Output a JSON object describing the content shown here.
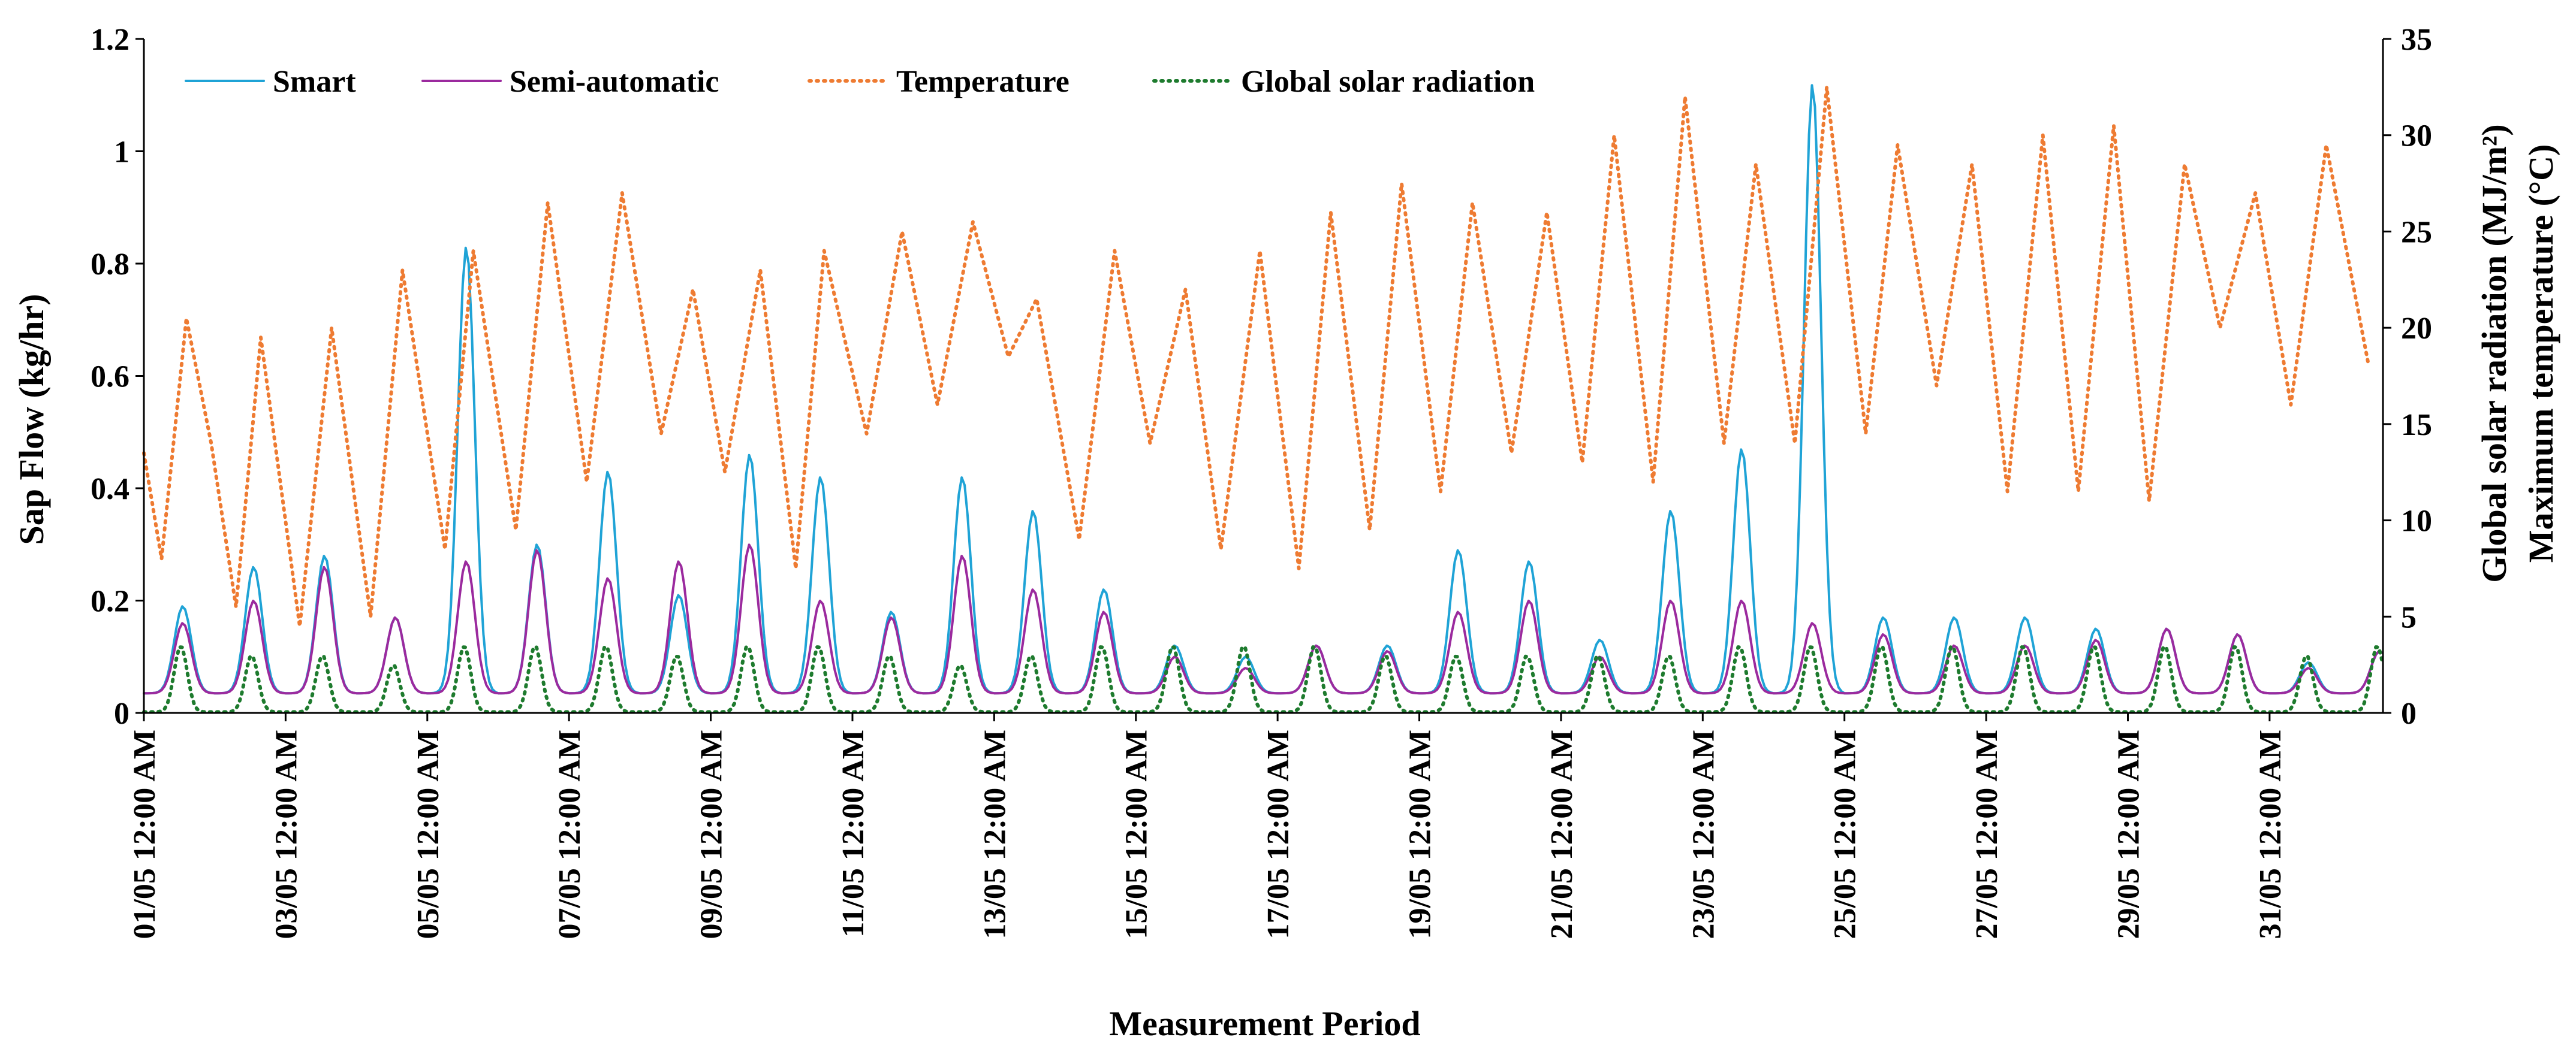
{
  "chart_data": {
    "type": "line",
    "xlabel": "Measurement Period",
    "ylabel_left": "Sap Flow (kg/hr)",
    "ylabel_right_1": "Global solar radiation (MJ/m²)",
    "ylabel_right_2": "Maximum temperature (°C)",
    "ylim_left": [
      0,
      1.2
    ],
    "ylim_right": [
      0,
      35
    ],
    "xlim_days": [
      0,
      31.6
    ],
    "left_ticks": [
      "0",
      "0.2",
      "0.4",
      "0.6",
      "0.8",
      "1",
      "1.2"
    ],
    "right_ticks": [
      "0",
      "5",
      "10",
      "15",
      "20",
      "25",
      "30",
      "35"
    ],
    "x_tick_labels": [
      "01/05 12:00 AM",
      "03/05 12:00 AM",
      "05/05 12:00 AM",
      "07/05 12:00 AM",
      "09/05 12:00 AM",
      "11/05 12:00 AM",
      "13/05 12:00 AM",
      "15/05 12:00 AM",
      "17/05 12:00 AM",
      "19/05 12:00 AM",
      "21/05 12:00 AM",
      "23/05 12:00 AM",
      "25/05 12:00 AM",
      "27/05 12:00 AM",
      "29/05 12:00 AM",
      "31/05 12:00 AM"
    ],
    "legend_position": "top-left",
    "series": [
      {
        "name": "Smart",
        "color": "#1fa3d6",
        "style": "solid",
        "axis": "left",
        "daily_peak": [
          0.19,
          0.26,
          0.28,
          0.17,
          0.83,
          0.3,
          0.43,
          0.21,
          0.46,
          0.42,
          0.18,
          0.42,
          0.36,
          0.22,
          0.12,
          0.1,
          0.12,
          0.12,
          0.29,
          0.27,
          0.13,
          0.36,
          0.47,
          1.12,
          0.17,
          0.17,
          0.17,
          0.15,
          0.15,
          0.14,
          0.09,
          0.11
        ]
      },
      {
        "name": "Semi-automatic",
        "color": "#9b2a9e",
        "style": "solid",
        "axis": "left",
        "daily_peak": [
          0.16,
          0.2,
          0.26,
          0.17,
          0.27,
          0.29,
          0.24,
          0.27,
          0.3,
          0.2,
          0.17,
          0.28,
          0.22,
          0.18,
          0.1,
          0.08,
          0.12,
          0.11,
          0.18,
          0.2,
          0.1,
          0.2,
          0.2,
          0.16,
          0.14,
          0.12,
          0.12,
          0.13,
          0.15,
          0.14,
          0.08,
          0.11
        ]
      },
      {
        "name": "Temperature",
        "color": "#ee7b32",
        "style": "dotted",
        "axis": "right",
        "points": [
          [
            0.0,
            13.5
          ],
          [
            0.25,
            8.0
          ],
          [
            0.6,
            20.5
          ],
          [
            0.95,
            14.0
          ],
          [
            1.3,
            5.5
          ],
          [
            1.65,
            19.5
          ],
          [
            2.2,
            4.5
          ],
          [
            2.65,
            20.0
          ],
          [
            3.2,
            5.0
          ],
          [
            3.65,
            23.0
          ],
          [
            4.25,
            8.5
          ],
          [
            4.65,
            24.0
          ],
          [
            5.25,
            9.5
          ],
          [
            5.7,
            26.5
          ],
          [
            6.25,
            12.0
          ],
          [
            6.75,
            27.0
          ],
          [
            7.3,
            14.5
          ],
          [
            7.75,
            22.0
          ],
          [
            8.2,
            12.5
          ],
          [
            8.7,
            23.0
          ],
          [
            9.2,
            7.5
          ],
          [
            9.6,
            24.0
          ],
          [
            10.2,
            14.5
          ],
          [
            10.7,
            25.0
          ],
          [
            11.2,
            16.0
          ],
          [
            11.7,
            25.5
          ],
          [
            12.2,
            18.5
          ],
          [
            12.6,
            21.5
          ],
          [
            13.2,
            9.0
          ],
          [
            13.7,
            24.0
          ],
          [
            14.2,
            14.0
          ],
          [
            14.7,
            22.0
          ],
          [
            15.2,
            8.5
          ],
          [
            15.75,
            24.0
          ],
          [
            16.3,
            7.5
          ],
          [
            16.75,
            26.0
          ],
          [
            17.3,
            9.5
          ],
          [
            17.75,
            27.5
          ],
          [
            18.3,
            11.5
          ],
          [
            18.75,
            26.5
          ],
          [
            19.3,
            13.5
          ],
          [
            19.8,
            26.0
          ],
          [
            20.3,
            13.0
          ],
          [
            20.75,
            30.0
          ],
          [
            21.3,
            12.0
          ],
          [
            21.75,
            32.0
          ],
          [
            22.3,
            14.0
          ],
          [
            22.75,
            28.5
          ],
          [
            23.3,
            14.0
          ],
          [
            23.75,
            32.5
          ],
          [
            24.3,
            14.5
          ],
          [
            24.75,
            29.5
          ],
          [
            25.3,
            17.0
          ],
          [
            25.8,
            28.5
          ],
          [
            26.3,
            11.5
          ],
          [
            26.8,
            30.0
          ],
          [
            27.3,
            11.5
          ],
          [
            27.8,
            30.5
          ],
          [
            28.3,
            11.0
          ],
          [
            28.8,
            28.5
          ],
          [
            29.3,
            20.0
          ],
          [
            29.8,
            27.0
          ],
          [
            30.3,
            16.0
          ],
          [
            30.8,
            29.5
          ],
          [
            31.4,
            18.0
          ]
        ]
      },
      {
        "name": "Global solar radiation",
        "color": "#1e7b2e",
        "style": "dotted",
        "axis": "right",
        "daily_peak": [
          3.5,
          3.0,
          3.0,
          2.5,
          3.5,
          3.5,
          3.5,
          3.0,
          3.5,
          3.5,
          3.0,
          2.5,
          3.0,
          3.5,
          3.5,
          3.5,
          3.5,
          3.0,
          3.0,
          3.0,
          3.0,
          3.0,
          3.5,
          3.5,
          3.5,
          3.5,
          3.5,
          3.5,
          3.5,
          3.5,
          3.0,
          3.5
        ]
      }
    ]
  }
}
